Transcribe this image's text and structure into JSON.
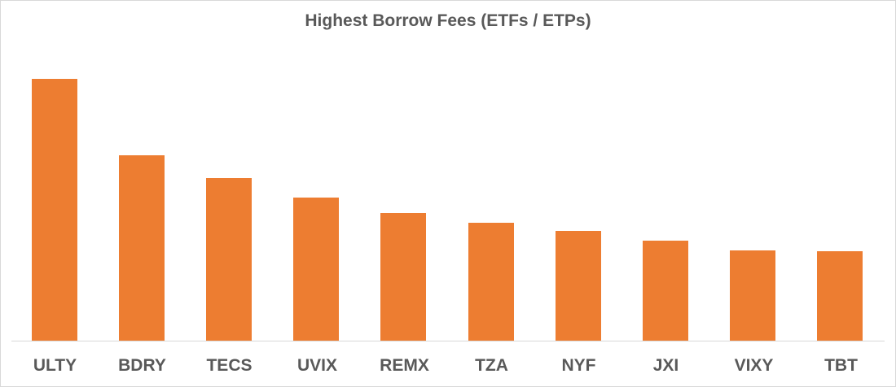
{
  "chart_data": {
    "type": "bar",
    "title": "Highest Borrow Fees (ETFs / ETPs)",
    "xlabel": "",
    "ylabel": "",
    "categories": [
      "ULTY",
      "BDRY",
      "TECS",
      "UVIX",
      "REMX",
      "TZA",
      "NYF",
      "JXI",
      "VIXY",
      "TBT"
    ],
    "values": [
      322,
      228,
      200,
      176,
      157,
      145,
      135,
      123,
      111,
      110
    ],
    "ylim": [
      0,
      359
    ],
    "grid": false,
    "legend": null,
    "colors": {
      "bar": "#ed7d31",
      "text": "#595959",
      "axis": "#d9d9d9"
    },
    "note": "No y-axis tick labels shown; values are relative bar heights (pixels)."
  }
}
